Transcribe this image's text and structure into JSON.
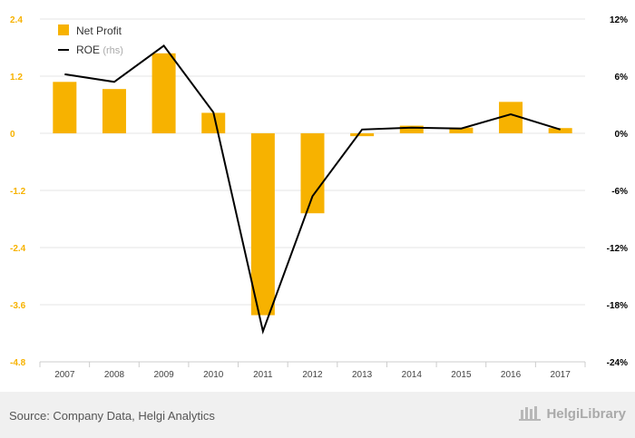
{
  "chart_data": {
    "type": "bar",
    "categories": [
      "2007",
      "2008",
      "2009",
      "2010",
      "2011",
      "2012",
      "2013",
      "2014",
      "2015",
      "2016",
      "2017"
    ],
    "series": [
      {
        "name": "Net Profit",
        "type": "bar",
        "axis": "left",
        "color": "#f7b200",
        "values": [
          1.08,
          0.93,
          1.68,
          0.43,
          -3.82,
          -1.68,
          -0.06,
          0.16,
          0.12,
          0.66,
          0.11
        ]
      },
      {
        "name": "ROE",
        "suffix": "(rhs)",
        "type": "line",
        "axis": "right",
        "color": "#000000",
        "values": [
          6.2,
          5.4,
          9.2,
          2.2,
          -20.8,
          -6.6,
          0.4,
          0.6,
          0.5,
          2.0,
          0.4
        ]
      }
    ],
    "left_axis": {
      "ylim": [
        -4.8,
        2.4
      ],
      "ticks": [
        "2.4",
        "1.2",
        "0",
        "-1.2",
        "-2.4",
        "-3.6",
        "-4.8"
      ],
      "color": "#f7b200"
    },
    "right_axis": {
      "ylim": [
        -24,
        12
      ],
      "ticks": [
        "12%",
        "6%",
        "0%",
        "-6%",
        "-12%",
        "-18%",
        "-24%"
      ],
      "color": "#000000"
    },
    "grid": true,
    "legend_position": "top-left"
  },
  "footer": {
    "source": "Source: Company Data, Helgi Analytics",
    "brand": "HelgiLibrary"
  }
}
